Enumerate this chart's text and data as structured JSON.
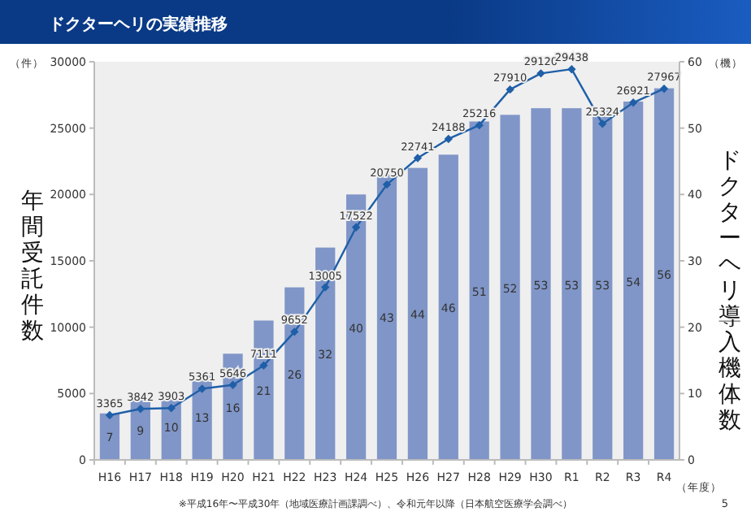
{
  "chart_data": {
    "type": "bar",
    "title": "ドクターヘリの実績推移",
    "ylabel": "年間受託件数",
    "y2label": "ドクターヘリ導入機体数",
    "categories": [
      "H16",
      "H17",
      "H18",
      "H19",
      "H20",
      "H21",
      "H22",
      "H23",
      "H24",
      "H25",
      "H26",
      "H27",
      "H28",
      "H29",
      "H30",
      "R1",
      "R2",
      "R3",
      "R4"
    ],
    "series": [
      {
        "axis": "y2",
        "color": "#8096c8",
        "values": [
          7,
          9,
          10,
          13,
          16,
          21,
          26,
          32,
          40,
          43,
          44,
          46,
          51,
          52,
          53,
          53,
          53,
          54,
          56
        ]
      },
      {
        "type": "line",
        "axis": "y",
        "color": "#1f5fa8",
        "marker": "diamond",
        "values": [
          3365,
          3842,
          3903,
          5361,
          5646,
          7111,
          9652,
          13005,
          17522,
          20750,
          22741,
          24188,
          25216,
          27910,
          29120,
          29438,
          25324,
          26921,
          27967
        ]
      }
    ],
    "ylim": [
      0,
      30000
    ],
    "yticks": [
      0,
      5000,
      10000,
      15000,
      20000,
      25000,
      30000
    ],
    "y2lim": [
      0,
      60
    ],
    "y2ticks": [
      0,
      10,
      20,
      30,
      40,
      50,
      60
    ],
    "data_labels": true,
    "annotations": [
      "（件）",
      "（機）",
      "（年度）",
      "※平成16年〜平成30年（地域医療計画課調べ）、令和元年以降（日本航空医療学会調べ）",
      "5"
    ]
  }
}
